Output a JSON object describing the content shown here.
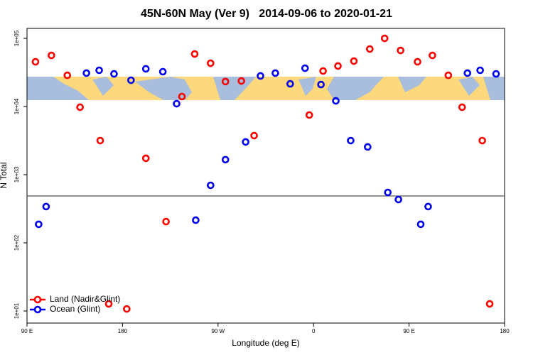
{
  "chart_data": {
    "type": "scatter",
    "title": "45N-60N May (Ver 9)   2014-09-06 to 2020-01-21",
    "x_label": "Longitude (deg E)",
    "y_label": "N Total",
    "xlim": [
      90,
      540
    ],
    "ylim": [
      6.65,
      140000
    ],
    "log_y": true,
    "legend": "bottom-left",
    "xticks": [
      {
        "value": 90,
        "label": "90 E"
      },
      180,
      {
        "value": 270,
        "label": "90 W"
      },
      {
        "value": 360,
        "label": "0"
      },
      {
        "value": 450,
        "label": "90 E"
      },
      {
        "value": 540,
        "label": "180"
      }
    ],
    "yticks": [
      {
        "value": 10,
        "label": "1e+01"
      },
      {
        "value": 100,
        "label": "1e+02"
      },
      {
        "value": 1000,
        "label": "1e+03"
      },
      {
        "value": 10000,
        "label": "1e+04"
      },
      {
        "value": 100000,
        "label": "1e+05"
      }
    ],
    "hline": 487,
    "series": [
      {
        "name": "Land (Nadir&Glint)",
        "color": "#ff0000",
        "x": [
          98,
          113,
          128,
          140,
          159,
          167,
          184,
          202,
          221,
          236,
          248,
          263,
          277,
          292,
          304,
          356,
          369,
          383,
          398,
          413,
          427,
          442,
          458,
          472,
          487,
          500,
          519,
          526
        ],
        "values": [
          45300,
          56200,
          28700,
          9770,
          3160,
          12.7,
          10.7,
          1740,
          205,
          14000,
          59000,
          43200,
          23200,
          23700,
          3740,
          7500,
          33200,
          39300,
          46400,
          69800,
          100000,
          66500,
          45300,
          56200,
          28700,
          9770,
          3160,
          12.7
        ]
      },
      {
        "name": "Ocean (Glint)",
        "color": "#0000ee",
        "x": [
          101,
          108,
          146,
          158,
          172,
          188,
          202,
          218,
          231,
          249,
          263,
          277,
          296,
          310,
          324,
          338,
          352,
          367,
          381,
          395,
          411,
          430,
          440,
          461,
          468,
          505,
          517,
          532
        ],
        "values": [
          187,
          340,
          30900,
          34000,
          30100,
          24300,
          35700,
          32400,
          11000,
          215,
          698,
          1660,
          3020,
          28100,
          30900,
          21500,
          36500,
          21000,
          12100,
          3160,
          2550,
          549,
          432,
          187,
          340,
          30900,
          34000,
          30100
        ]
      }
    ]
  }
}
